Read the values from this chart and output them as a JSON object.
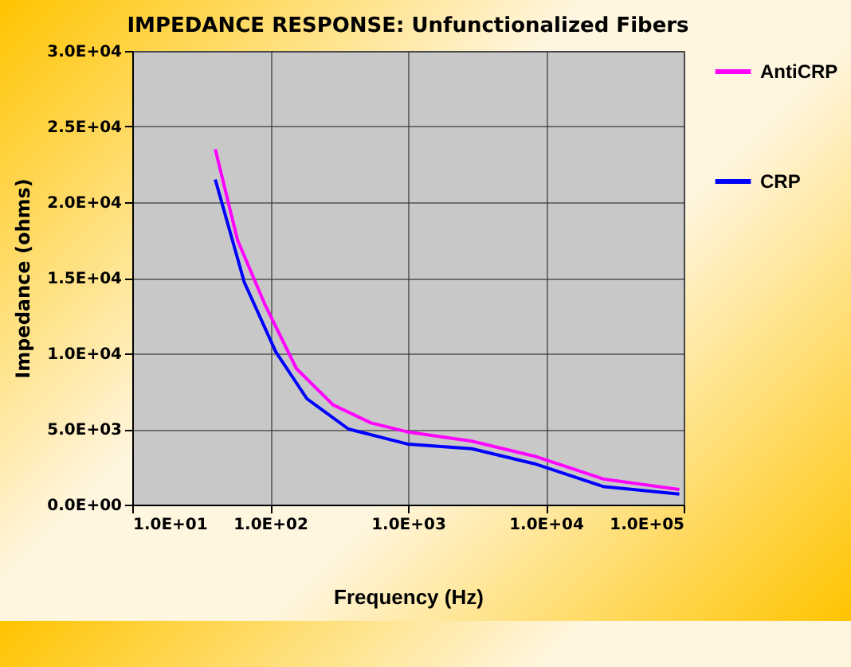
{
  "chart_data": {
    "type": "line",
    "title": "IMPEDANCE RESPONSE: Unfunctionalized Fibers",
    "xlabel": "Frequency (Hz)",
    "ylabel": "Impedance (ohms)",
    "log": "x",
    "grid": true,
    "legend": "right",
    "marker": "none",
    "line_style": "solid",
    "xlim": [
      10,
      100000
    ],
    "ylim": [
      0,
      30000
    ],
    "xticks": [
      {
        "value": 10,
        "label": "1.0E+01"
      },
      {
        "value": 100,
        "label": "1.0E+02"
      },
      {
        "value": 1000,
        "label": "1.0E+03"
      },
      {
        "value": 10000,
        "label": "1.0E+04"
      },
      {
        "value": 100000,
        "label": "1.0E+05"
      }
    ],
    "yticks": [
      {
        "value": 0,
        "label": "0.0E+00"
      },
      {
        "value": 5000,
        "label": "5.0E+03"
      },
      {
        "value": 10000,
        "label": "1.0E+04"
      },
      {
        "value": 15000,
        "label": "1.5E+04"
      },
      {
        "value": 20000,
        "label": "2.0E+04"
      },
      {
        "value": 25000,
        "label": "2.5E+04"
      },
      {
        "value": 30000,
        "label": "3.0E+04"
      }
    ],
    "series": [
      {
        "name": "AntiCRP",
        "color": "#ff00ff",
        "x": [
          40,
          58,
          91,
          155,
          286,
          540,
          1000,
          2900,
          8300,
          26000,
          93000
        ],
        "values": [
          23500,
          17500,
          13300,
          9000,
          6600,
          5400,
          4800,
          4200,
          3200,
          1700,
          1000
        ]
      },
      {
        "name": "CRP",
        "color": "#0000ff",
        "x": [
          40,
          65,
          110,
          185,
          370,
          1000,
          2900,
          8300,
          26000,
          93000
        ],
        "values": [
          21500,
          14700,
          10100,
          7000,
          5000,
          4000,
          3700,
          2700,
          1200,
          700
        ]
      }
    ]
  }
}
